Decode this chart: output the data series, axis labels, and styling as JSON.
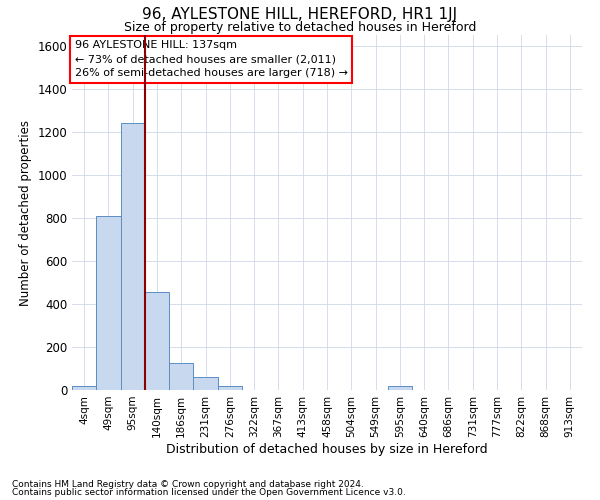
{
  "title": "96, AYLESTONE HILL, HEREFORD, HR1 1JJ",
  "subtitle": "Size of property relative to detached houses in Hereford",
  "xlabel": "Distribution of detached houses by size in Hereford",
  "ylabel": "Number of detached properties",
  "footnote1": "Contains HM Land Registry data © Crown copyright and database right 2024.",
  "footnote2": "Contains public sector information licensed under the Open Government Licence v3.0.",
  "bin_labels": [
    "4sqm",
    "49sqm",
    "95sqm",
    "140sqm",
    "186sqm",
    "231sqm",
    "276sqm",
    "322sqm",
    "367sqm",
    "413sqm",
    "458sqm",
    "504sqm",
    "549sqm",
    "595sqm",
    "640sqm",
    "686sqm",
    "731sqm",
    "777sqm",
    "822sqm",
    "868sqm",
    "913sqm"
  ],
  "bar_heights": [
    20,
    808,
    1240,
    455,
    125,
    60,
    20,
    0,
    0,
    0,
    0,
    0,
    0,
    18,
    0,
    0,
    0,
    0,
    0,
    0,
    0
  ],
  "bar_color": "#c8d9ef",
  "bar_edge_color": "#5b8ec4",
  "ylim": [
    0,
    1650
  ],
  "yticks": [
    0,
    200,
    400,
    600,
    800,
    1000,
    1200,
    1400,
    1600
  ],
  "vline_x_index": 2.5,
  "vline_color": "#8b0000",
  "annotation_text": "96 AYLESTONE HILL: 137sqm\n← 73% of detached houses are smaller (2,011)\n26% of semi-detached houses are larger (718) →",
  "background_color": "#ffffff",
  "grid_color": "#d0d8e8",
  "title_fontsize": 11,
  "subtitle_fontsize": 9
}
